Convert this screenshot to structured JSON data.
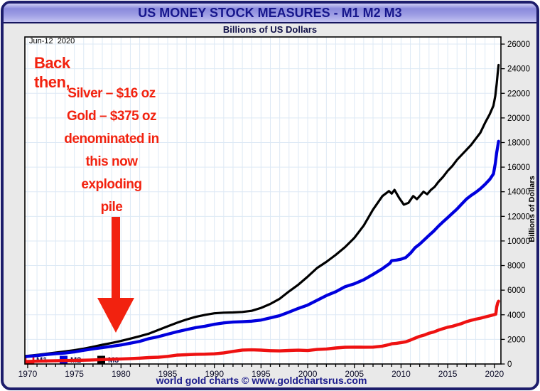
{
  "header": {
    "title": "US MONEY STOCK MEASURES - M1 M2 M3",
    "subtitle": "Billions of US Dollars"
  },
  "plot": {
    "date_label": "Jun-12  2020",
    "y_axis_title": "Billions of Dollars"
  },
  "annotation": {
    "intro": [
      "Back",
      "then,"
    ],
    "lines": [
      "Silver – $16 oz",
      "Gold – $375 oz",
      "denominated in",
      "this now",
      "exploding",
      "pile"
    ],
    "text_color": "#f2220f",
    "arrow_color": "#f2220f"
  },
  "footer": {
    "credit": "world gold charts © www.goldchartsrus.com"
  },
  "chart_data": {
    "type": "line",
    "title": "US MONEY STOCK MEASURES - M1 M2 M3",
    "subtitle": "Billions of US Dollars",
    "x_axis": {
      "min": 1969.7,
      "max": 2020.7,
      "major_ticks": [
        1970,
        1975,
        1980,
        1985,
        1990,
        1995,
        2000,
        2005,
        2010,
        2015,
        2020
      ],
      "minor_tick_step": 1
    },
    "y_axis": {
      "min": 0,
      "max": 26000,
      "step": 2000,
      "label": "Billions of Dollars",
      "side": "right"
    },
    "grid": {
      "vertical_step_years": 1,
      "horizontal_step": 2000,
      "color": "#dde9f5"
    },
    "legend": [
      {
        "label": "M1",
        "color": "#ee1111",
        "style": "outlined"
      },
      {
        "label": "M2",
        "color": "#0000dd",
        "style": "filled"
      },
      {
        "label": "M3",
        "color": "#000000",
        "style": "filled"
      }
    ],
    "series": [
      {
        "name": "M3",
        "color": "#000000",
        "points": [
          [
            1969.7,
            640
          ],
          [
            1970,
            660
          ],
          [
            1971,
            740
          ],
          [
            1972,
            830
          ],
          [
            1973,
            930
          ],
          [
            1974,
            1020
          ],
          [
            1975,
            1120
          ],
          [
            1976,
            1250
          ],
          [
            1977,
            1400
          ],
          [
            1978,
            1560
          ],
          [
            1979,
            1710
          ],
          [
            1980,
            1870
          ],
          [
            1981,
            2060
          ],
          [
            1982,
            2260
          ],
          [
            1983,
            2470
          ],
          [
            1984,
            2770
          ],
          [
            1985,
            3060
          ],
          [
            1986,
            3350
          ],
          [
            1987,
            3610
          ],
          [
            1988,
            3830
          ],
          [
            1989,
            3990
          ],
          [
            1990,
            4120
          ],
          [
            1991,
            4170
          ],
          [
            1992,
            4190
          ],
          [
            1993,
            4230
          ],
          [
            1994,
            4320
          ],
          [
            1995,
            4560
          ],
          [
            1996,
            4880
          ],
          [
            1997,
            5300
          ],
          [
            1998,
            5900
          ],
          [
            1999,
            6450
          ],
          [
            2000,
            7100
          ],
          [
            2001,
            7800
          ],
          [
            2002,
            8300
          ],
          [
            2003,
            8870
          ],
          [
            2004,
            9500
          ],
          [
            2005,
            10250
          ],
          [
            2006,
            11250
          ],
          [
            2007,
            12550
          ],
          [
            2008,
            13650
          ],
          [
            2008.7,
            14050
          ],
          [
            2009,
            13850
          ],
          [
            2009.3,
            14150
          ],
          [
            2009.8,
            13500
          ],
          [
            2010.3,
            12950
          ],
          [
            2010.8,
            13100
          ],
          [
            2011.3,
            13650
          ],
          [
            2011.7,
            13400
          ],
          [
            2012,
            13650
          ],
          [
            2012.4,
            14000
          ],
          [
            2012.8,
            13800
          ],
          [
            2013.2,
            14150
          ],
          [
            2013.6,
            14400
          ],
          [
            2014,
            14800
          ],
          [
            2014.5,
            15200
          ],
          [
            2015,
            15700
          ],
          [
            2015.5,
            16100
          ],
          [
            2016,
            16600
          ],
          [
            2016.5,
            17000
          ],
          [
            2017,
            17400
          ],
          [
            2017.5,
            17800
          ],
          [
            2018,
            18300
          ],
          [
            2018.5,
            18800
          ],
          [
            2019,
            19600
          ],
          [
            2019.5,
            20300
          ],
          [
            2019.9,
            21000
          ],
          [
            2020.1,
            21800
          ],
          [
            2020.25,
            22800
          ],
          [
            2020.35,
            23600
          ],
          [
            2020.45,
            24300
          ]
        ]
      },
      {
        "name": "M2",
        "color": "#0000dd",
        "points": [
          [
            1969.7,
            590
          ],
          [
            1970,
            610
          ],
          [
            1971,
            690
          ],
          [
            1972,
            770
          ],
          [
            1973,
            840
          ],
          [
            1974,
            890
          ],
          [
            1975,
            980
          ],
          [
            1976,
            1110
          ],
          [
            1977,
            1230
          ],
          [
            1978,
            1330
          ],
          [
            1979,
            1440
          ],
          [
            1980,
            1550
          ],
          [
            1981,
            1690
          ],
          [
            1982,
            1840
          ],
          [
            1983,
            2060
          ],
          [
            1984,
            2220
          ],
          [
            1985,
            2420
          ],
          [
            1986,
            2620
          ],
          [
            1987,
            2790
          ],
          [
            1988,
            2950
          ],
          [
            1989,
            3070
          ],
          [
            1990,
            3230
          ],
          [
            1991,
            3340
          ],
          [
            1992,
            3410
          ],
          [
            1993,
            3440
          ],
          [
            1994,
            3480
          ],
          [
            1995,
            3570
          ],
          [
            1996,
            3750
          ],
          [
            1997,
            3930
          ],
          [
            1998,
            4220
          ],
          [
            1999,
            4520
          ],
          [
            2000,
            4790
          ],
          [
            2001,
            5180
          ],
          [
            2002,
            5560
          ],
          [
            2003,
            5870
          ],
          [
            2004,
            6280
          ],
          [
            2005,
            6520
          ],
          [
            2006,
            6850
          ],
          [
            2007,
            7280
          ],
          [
            2008,
            7750
          ],
          [
            2008.8,
            8180
          ],
          [
            2009,
            8400
          ],
          [
            2009.5,
            8440
          ],
          [
            2010,
            8520
          ],
          [
            2010.5,
            8650
          ],
          [
            2011,
            9000
          ],
          [
            2011.5,
            9450
          ],
          [
            2012,
            9750
          ],
          [
            2012.5,
            10100
          ],
          [
            2013,
            10450
          ],
          [
            2013.5,
            10800
          ],
          [
            2014,
            11200
          ],
          [
            2014.5,
            11550
          ],
          [
            2015,
            11900
          ],
          [
            2015.5,
            12250
          ],
          [
            2016,
            12600
          ],
          [
            2016.5,
            13000
          ],
          [
            2017,
            13400
          ],
          [
            2017.5,
            13700
          ],
          [
            2018,
            13950
          ],
          [
            2018.5,
            14250
          ],
          [
            2019,
            14600
          ],
          [
            2019.5,
            15000
          ],
          [
            2019.9,
            15450
          ],
          [
            2020.1,
            16300
          ],
          [
            2020.25,
            17200
          ],
          [
            2020.45,
            18100
          ]
        ]
      },
      {
        "name": "M1",
        "color": "#ee1111",
        "points": [
          [
            1969.7,
            205
          ],
          [
            1970,
            210
          ],
          [
            1971,
            225
          ],
          [
            1972,
            250
          ],
          [
            1973,
            265
          ],
          [
            1974,
            275
          ],
          [
            1975,
            290
          ],
          [
            1976,
            305
          ],
          [
            1977,
            330
          ],
          [
            1978,
            360
          ],
          [
            1979,
            385
          ],
          [
            1980,
            410
          ],
          [
            1981,
            440
          ],
          [
            1982,
            475
          ],
          [
            1983,
            520
          ],
          [
            1984,
            550
          ],
          [
            1985,
            620
          ],
          [
            1986,
            725
          ],
          [
            1987,
            750
          ],
          [
            1988,
            785
          ],
          [
            1989,
            795
          ],
          [
            1990,
            825
          ],
          [
            1991,
            900
          ],
          [
            1992,
            1025
          ],
          [
            1993,
            1130
          ],
          [
            1994,
            1150
          ],
          [
            1995,
            1125
          ],
          [
            1996,
            1080
          ],
          [
            1997,
            1065
          ],
          [
            1998,
            1095
          ],
          [
            1999,
            1120
          ],
          [
            2000,
            1090
          ],
          [
            2001,
            1180
          ],
          [
            2002,
            1220
          ],
          [
            2003,
            1300
          ],
          [
            2004,
            1360
          ],
          [
            2005,
            1370
          ],
          [
            2006,
            1365
          ],
          [
            2007,
            1370
          ],
          [
            2008,
            1450
          ],
          [
            2008.8,
            1590
          ],
          [
            2009,
            1640
          ],
          [
            2009.5,
            1680
          ],
          [
            2010,
            1740
          ],
          [
            2010.5,
            1800
          ],
          [
            2011,
            1940
          ],
          [
            2011.5,
            2100
          ],
          [
            2012,
            2250
          ],
          [
            2012.5,
            2350
          ],
          [
            2013,
            2500
          ],
          [
            2013.5,
            2600
          ],
          [
            2014,
            2750
          ],
          [
            2014.5,
            2870
          ],
          [
            2015,
            2990
          ],
          [
            2015.5,
            3060
          ],
          [
            2016,
            3180
          ],
          [
            2016.5,
            3290
          ],
          [
            2017,
            3440
          ],
          [
            2017.5,
            3550
          ],
          [
            2018,
            3640
          ],
          [
            2018.5,
            3720
          ],
          [
            2019,
            3820
          ],
          [
            2019.5,
            3920
          ],
          [
            2019.9,
            3990
          ],
          [
            2020.15,
            4050
          ],
          [
            2020.25,
            4650
          ],
          [
            2020.35,
            4950
          ],
          [
            2020.45,
            5100
          ]
        ]
      }
    ]
  }
}
